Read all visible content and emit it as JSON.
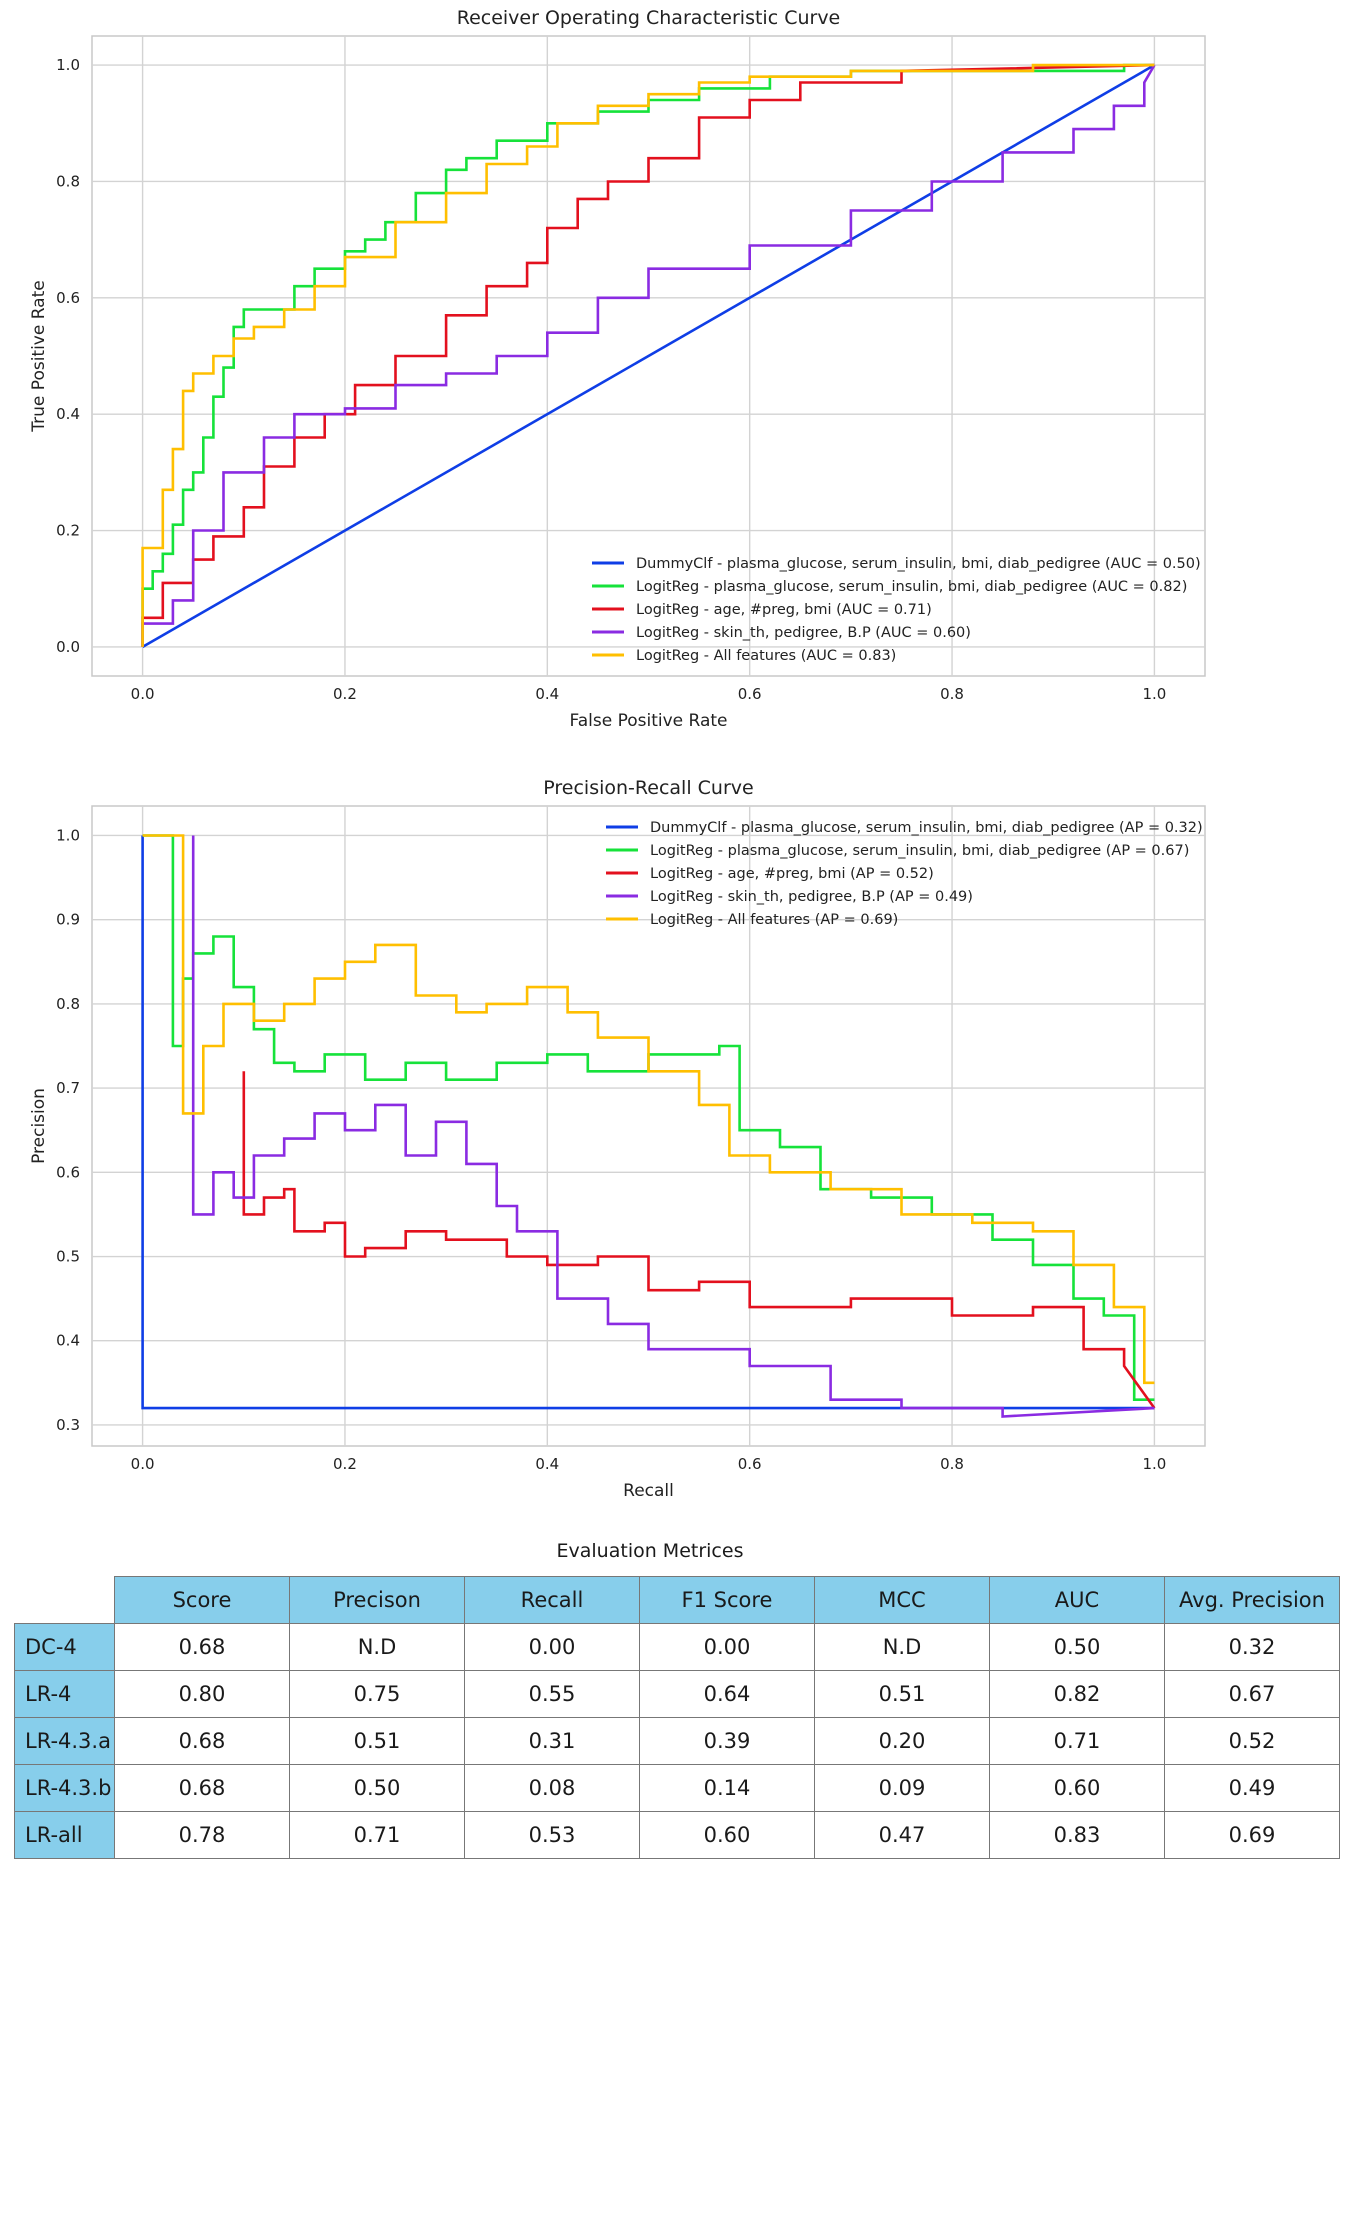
{
  "chart_data": [
    {
      "type": "line",
      "title": "Receiver Operating Characteristic Curve",
      "xlabel": "False Positive Rate",
      "ylabel": "True Positive Rate",
      "xlim": [
        -0.05,
        1.05
      ],
      "ylim": [
        -0.05,
        1.05
      ],
      "xticks": [
        0.0,
        0.2,
        0.4,
        0.6,
        0.8,
        1.0
      ],
      "yticks": [
        0.0,
        0.2,
        0.4,
        0.6,
        0.8,
        1.0
      ],
      "xtick_labels": [
        "0.0",
        "0.2",
        "0.4",
        "0.6",
        "0.8",
        "1.0"
      ],
      "ytick_labels": [
        "0.0",
        "0.2",
        "0.4",
        "0.6",
        "0.8",
        "1.0"
      ],
      "grid": true,
      "legend_position": "lower right",
      "series": [
        {
          "name": "DummyClf - plasma_glucose, serum_insulin, bmi, diab_pedigree (AUC = 0.50)",
          "color": "#0f3ee6",
          "x": [
            0,
            1
          ],
          "y": [
            0,
            1
          ]
        },
        {
          "name": "LogitReg - plasma_glucose, serum_insulin, bmi, diab_pedigree (AUC = 0.82)",
          "color": "#16e23a",
          "x": [
            0,
            0,
            0.01,
            0.01,
            0.02,
            0.02,
            0.03,
            0.03,
            0.04,
            0.04,
            0.05,
            0.05,
            0.06,
            0.06,
            0.07,
            0.07,
            0.08,
            0.08,
            0.09,
            0.09,
            0.1,
            0.1,
            0.15,
            0.15,
            0.17,
            0.17,
            0.2,
            0.2,
            0.22,
            0.22,
            0.24,
            0.24,
            0.27,
            0.27,
            0.3,
            0.3,
            0.32,
            0.32,
            0.35,
            0.35,
            0.4,
            0.4,
            0.45,
            0.45,
            0.5,
            0.5,
            0.55,
            0.55,
            0.62,
            0.62,
            0.7,
            0.7,
            0.97,
            0.97,
            1.0
          ],
          "y": [
            0,
            0.1,
            0.1,
            0.13,
            0.13,
            0.16,
            0.16,
            0.21,
            0.21,
            0.27,
            0.27,
            0.3,
            0.3,
            0.36,
            0.36,
            0.43,
            0.43,
            0.48,
            0.48,
            0.55,
            0.55,
            0.58,
            0.58,
            0.62,
            0.62,
            0.65,
            0.65,
            0.68,
            0.68,
            0.7,
            0.7,
            0.73,
            0.73,
            0.78,
            0.78,
            0.82,
            0.82,
            0.84,
            0.84,
            0.87,
            0.87,
            0.9,
            0.9,
            0.92,
            0.92,
            0.94,
            0.94,
            0.96,
            0.96,
            0.98,
            0.98,
            0.99,
            0.99,
            1.0,
            1.0
          ]
        },
        {
          "name": "LogitReg - age, #preg, bmi (AUC = 0.71)",
          "color": "#e3101e",
          "x": [
            0,
            0,
            0.02,
            0.02,
            0.05,
            0.05,
            0.07,
            0.07,
            0.1,
            0.1,
            0.12,
            0.12,
            0.15,
            0.15,
            0.18,
            0.18,
            0.21,
            0.21,
            0.25,
            0.25,
            0.3,
            0.3,
            0.34,
            0.34,
            0.38,
            0.38,
            0.4,
            0.4,
            0.43,
            0.43,
            0.46,
            0.46,
            0.5,
            0.5,
            0.55,
            0.55,
            0.6,
            0.6,
            0.65,
            0.65,
            0.75,
            0.75,
            1.0
          ],
          "y": [
            0,
            0.05,
            0.05,
            0.11,
            0.11,
            0.15,
            0.15,
            0.19,
            0.19,
            0.24,
            0.24,
            0.31,
            0.31,
            0.36,
            0.36,
            0.4,
            0.4,
            0.45,
            0.45,
            0.5,
            0.5,
            0.57,
            0.57,
            0.62,
            0.62,
            0.66,
            0.66,
            0.72,
            0.72,
            0.77,
            0.77,
            0.8,
            0.8,
            0.84,
            0.84,
            0.91,
            0.91,
            0.94,
            0.94,
            0.97,
            0.97,
            0.99,
            1.0
          ]
        },
        {
          "name": "LogitReg - skin_th, pedigree, B.P (AUC = 0.60)",
          "color": "#8a2be2",
          "x": [
            0,
            0,
            0.03,
            0.03,
            0.05,
            0.05,
            0.08,
            0.08,
            0.12,
            0.12,
            0.15,
            0.15,
            0.2,
            0.2,
            0.25,
            0.25,
            0.3,
            0.3,
            0.35,
            0.35,
            0.4,
            0.4,
            0.45,
            0.45,
            0.5,
            0.5,
            0.6,
            0.6,
            0.7,
            0.7,
            0.78,
            0.78,
            0.85,
            0.85,
            0.92,
            0.92,
            0.96,
            0.96,
            0.99,
            0.99,
            1.0
          ],
          "y": [
            0,
            0.04,
            0.04,
            0.08,
            0.08,
            0.2,
            0.2,
            0.3,
            0.3,
            0.36,
            0.36,
            0.4,
            0.4,
            0.41,
            0.41,
            0.45,
            0.45,
            0.47,
            0.47,
            0.5,
            0.5,
            0.54,
            0.54,
            0.6,
            0.6,
            0.65,
            0.65,
            0.69,
            0.69,
            0.75,
            0.75,
            0.8,
            0.8,
            0.85,
            0.85,
            0.89,
            0.89,
            0.93,
            0.93,
            0.97,
            1.0
          ]
        },
        {
          "name": "LogitReg - All features (AUC = 0.83)",
          "color": "#ffbf00",
          "x": [
            0,
            0,
            0.02,
            0.02,
            0.03,
            0.03,
            0.04,
            0.04,
            0.05,
            0.05,
            0.07,
            0.07,
            0.09,
            0.09,
            0.11,
            0.11,
            0.14,
            0.14,
            0.17,
            0.17,
            0.2,
            0.2,
            0.25,
            0.25,
            0.3,
            0.3,
            0.34,
            0.34,
            0.38,
            0.38,
            0.41,
            0.41,
            0.45,
            0.45,
            0.5,
            0.5,
            0.55,
            0.55,
            0.6,
            0.6,
            0.7,
            0.7,
            0.88,
            0.88,
            1.0
          ],
          "y": [
            0,
            0.17,
            0.17,
            0.27,
            0.27,
            0.34,
            0.34,
            0.44,
            0.44,
            0.47,
            0.47,
            0.5,
            0.5,
            0.53,
            0.53,
            0.55,
            0.55,
            0.58,
            0.58,
            0.62,
            0.62,
            0.67,
            0.67,
            0.73,
            0.73,
            0.78,
            0.78,
            0.83,
            0.83,
            0.86,
            0.86,
            0.9,
            0.9,
            0.93,
            0.93,
            0.95,
            0.95,
            0.97,
            0.97,
            0.98,
            0.98,
            0.99,
            0.99,
            1.0,
            1.0
          ]
        }
      ]
    },
    {
      "type": "line",
      "title": "Precision-Recall Curve",
      "xlabel": "Recall",
      "ylabel": "Precision",
      "xlim": [
        -0.05,
        1.05
      ],
      "ylim": [
        0.275,
        1.035
      ],
      "xticks": [
        0.0,
        0.2,
        0.4,
        0.6,
        0.8,
        1.0
      ],
      "yticks": [
        0.3,
        0.4,
        0.5,
        0.6,
        0.7,
        0.8,
        0.9,
        1.0
      ],
      "xtick_labels": [
        "0.0",
        "0.2",
        "0.4",
        "0.6",
        "0.8",
        "1.0"
      ],
      "ytick_labels": [
        "0.3",
        "0.4",
        "0.5",
        "0.6",
        "0.7",
        "0.8",
        "0.9",
        "1.0"
      ],
      "grid": true,
      "legend_position": "upper right",
      "series": [
        {
          "name": "DummyClf - plasma_glucose, serum_insulin, bmi, diab_pedigree (AP = 0.32)",
          "color": "#0f3ee6",
          "x": [
            0,
            0,
            1.0
          ],
          "y": [
            1.0,
            0.32,
            0.32
          ]
        },
        {
          "name": "LogitReg - plasma_glucose, serum_insulin, bmi, diab_pedigree (AP = 0.67)",
          "color": "#16e23a",
          "x": [
            0,
            0.03,
            0.03,
            0.04,
            0.04,
            0.05,
            0.05,
            0.07,
            0.07,
            0.09,
            0.09,
            0.11,
            0.11,
            0.13,
            0.13,
            0.15,
            0.15,
            0.18,
            0.18,
            0.22,
            0.22,
            0.26,
            0.26,
            0.3,
            0.3,
            0.35,
            0.35,
            0.4,
            0.4,
            0.44,
            0.44,
            0.5,
            0.5,
            0.57,
            0.57,
            0.59,
            0.59,
            0.63,
            0.63,
            0.67,
            0.67,
            0.72,
            0.72,
            0.78,
            0.78,
            0.84,
            0.84,
            0.88,
            0.88,
            0.92,
            0.92,
            0.95,
            0.95,
            0.98,
            0.98,
            1.0
          ],
          "y": [
            1.0,
            1.0,
            0.75,
            0.75,
            0.83,
            0.83,
            0.86,
            0.86,
            0.88,
            0.88,
            0.82,
            0.82,
            0.77,
            0.77,
            0.73,
            0.73,
            0.72,
            0.72,
            0.74,
            0.74,
            0.71,
            0.71,
            0.73,
            0.73,
            0.71,
            0.71,
            0.73,
            0.73,
            0.74,
            0.74,
            0.72,
            0.72,
            0.74,
            0.74,
            0.75,
            0.75,
            0.65,
            0.65,
            0.63,
            0.63,
            0.58,
            0.58,
            0.57,
            0.57,
            0.55,
            0.55,
            0.52,
            0.52,
            0.49,
            0.49,
            0.45,
            0.45,
            0.43,
            0.43,
            0.33,
            0.33
          ]
        },
        {
          "name": "LogitReg - age, #preg, bmi (AP = 0.52)",
          "color": "#e3101e",
          "x": [
            0.1,
            0.1,
            0.12,
            0.12,
            0.14,
            0.14,
            0.15,
            0.15,
            0.18,
            0.18,
            0.2,
            0.2,
            0.22,
            0.22,
            0.26,
            0.26,
            0.3,
            0.3,
            0.36,
            0.36,
            0.4,
            0.4,
            0.45,
            0.45,
            0.5,
            0.5,
            0.55,
            0.55,
            0.6,
            0.6,
            0.7,
            0.7,
            0.8,
            0.8,
            0.88,
            0.88,
            0.93,
            0.93,
            0.97,
            0.97,
            1.0
          ],
          "y": [
            0.72,
            0.55,
            0.55,
            0.57,
            0.57,
            0.58,
            0.58,
            0.53,
            0.53,
            0.54,
            0.54,
            0.5,
            0.5,
            0.51,
            0.51,
            0.53,
            0.53,
            0.52,
            0.52,
            0.5,
            0.5,
            0.49,
            0.49,
            0.5,
            0.5,
            0.46,
            0.46,
            0.47,
            0.47,
            0.44,
            0.44,
            0.45,
            0.45,
            0.43,
            0.43,
            0.44,
            0.44,
            0.39,
            0.39,
            0.37,
            0.32
          ]
        },
        {
          "name": "LogitReg - skin_th, pedigree, B.P (AP = 0.49)",
          "color": "#8a2be2",
          "x": [
            0.05,
            0.05,
            0.07,
            0.07,
            0.09,
            0.09,
            0.11,
            0.11,
            0.14,
            0.14,
            0.17,
            0.17,
            0.2,
            0.2,
            0.23,
            0.23,
            0.26,
            0.26,
            0.29,
            0.29,
            0.32,
            0.32,
            0.35,
            0.35,
            0.37,
            0.37,
            0.41,
            0.41,
            0.46,
            0.46,
            0.5,
            0.5,
            0.55,
            0.55,
            0.6,
            0.6,
            0.68,
            0.68,
            0.75,
            0.75,
            0.85,
            0.85,
            1.0
          ],
          "y": [
            1.0,
            0.55,
            0.55,
            0.6,
            0.6,
            0.57,
            0.57,
            0.62,
            0.62,
            0.64,
            0.64,
            0.67,
            0.67,
            0.65,
            0.65,
            0.68,
            0.68,
            0.62,
            0.62,
            0.66,
            0.66,
            0.61,
            0.61,
            0.56,
            0.56,
            0.53,
            0.53,
            0.45,
            0.45,
            0.42,
            0.42,
            0.39,
            0.39,
            0.39,
            0.39,
            0.37,
            0.37,
            0.33,
            0.33,
            0.32,
            0.32,
            0.31,
            0.32
          ]
        },
        {
          "name": "LogitReg - All features (AP = 0.69)",
          "color": "#ffbf00",
          "x": [
            0,
            0.04,
            0.04,
            0.06,
            0.06,
            0.08,
            0.08,
            0.11,
            0.11,
            0.14,
            0.14,
            0.17,
            0.17,
            0.2,
            0.2,
            0.23,
            0.23,
            0.27,
            0.27,
            0.31,
            0.31,
            0.34,
            0.34,
            0.38,
            0.38,
            0.42,
            0.42,
            0.45,
            0.45,
            0.5,
            0.5,
            0.55,
            0.55,
            0.58,
            0.58,
            0.62,
            0.62,
            0.68,
            0.68,
            0.75,
            0.75,
            0.82,
            0.82,
            0.88,
            0.88,
            0.92,
            0.92,
            0.96,
            0.96,
            0.99,
            0.99,
            1.0
          ],
          "y": [
            1.0,
            1.0,
            0.67,
            0.67,
            0.75,
            0.75,
            0.8,
            0.8,
            0.78,
            0.78,
            0.8,
            0.8,
            0.83,
            0.83,
            0.85,
            0.85,
            0.87,
            0.87,
            0.81,
            0.81,
            0.79,
            0.79,
            0.8,
            0.8,
            0.82,
            0.82,
            0.79,
            0.79,
            0.76,
            0.76,
            0.72,
            0.72,
            0.68,
            0.68,
            0.62,
            0.62,
            0.6,
            0.6,
            0.58,
            0.58,
            0.55,
            0.55,
            0.54,
            0.54,
            0.53,
            0.53,
            0.49,
            0.49,
            0.44,
            0.44,
            0.35,
            0.35
          ]
        }
      ]
    },
    {
      "type": "table",
      "title": "Evaluation Metrices",
      "columns": [
        "Score",
        "Precison",
        "Recall",
        "F1 Score",
        "MCC",
        "AUC",
        "Avg. Precision"
      ],
      "rows": [
        {
          "label": "DC-4",
          "values": [
            "0.68",
            "N.D",
            "0.00",
            "0.00",
            "N.D",
            "0.50",
            "0.32"
          ]
        },
        {
          "label": "LR-4",
          "values": [
            "0.80",
            "0.75",
            "0.55",
            "0.64",
            "0.51",
            "0.82",
            "0.67"
          ]
        },
        {
          "label": "LR-4.3.a",
          "values": [
            "0.68",
            "0.51",
            "0.31",
            "0.39",
            "0.20",
            "0.71",
            "0.52"
          ]
        },
        {
          "label": "LR-4.3.b",
          "values": [
            "0.68",
            "0.50",
            "0.08",
            "0.14",
            "0.09",
            "0.60",
            "0.49"
          ]
        },
        {
          "label": "LR-all",
          "values": [
            "0.78",
            "0.71",
            "0.53",
            "0.60",
            "0.47",
            "0.83",
            "0.69"
          ]
        }
      ]
    }
  ]
}
